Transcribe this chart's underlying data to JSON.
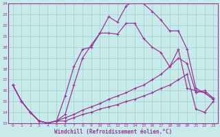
{
  "xlabel": "Windchill (Refroidissement éolien,°C)",
  "bg_color": "#c8eaea",
  "line_color": "#993399",
  "grid_color": "#9ecece",
  "xlim": [
    -0.5,
    23.5
  ],
  "ylim": [
    13,
    24
  ],
  "yticks": [
    13,
    14,
    15,
    16,
    17,
    18,
    19,
    20,
    21,
    22,
    23,
    24
  ],
  "xticks": [
    0,
    1,
    2,
    3,
    4,
    5,
    6,
    7,
    8,
    9,
    10,
    11,
    12,
    13,
    14,
    15,
    16,
    17,
    18,
    19,
    20,
    21,
    22,
    23
  ],
  "line1_x": [
    0,
    1,
    2,
    3,
    4,
    5,
    6,
    7,
    8,
    9,
    10,
    11,
    12,
    13,
    14,
    15,
    16,
    17,
    18,
    19,
    20,
    21,
    22,
    23
  ],
  "line1_y": [
    16.5,
    15.0,
    14.0,
    13.2,
    13.0,
    13.2,
    15.5,
    18.2,
    19.8,
    20.0,
    21.3,
    22.8,
    22.3,
    23.8,
    24.3,
    24.0,
    23.3,
    22.5,
    21.5,
    21.5,
    19.8,
    16.2,
    15.8,
    15.2
  ],
  "line2_x": [
    0,
    1,
    2,
    3,
    4,
    5,
    6,
    7,
    8,
    9,
    10,
    11,
    12,
    13,
    14,
    15,
    16,
    17,
    18,
    19,
    20,
    21,
    22,
    23
  ],
  "line2_y": [
    16.5,
    15.0,
    14.0,
    13.2,
    13.0,
    13.2,
    13.8,
    16.5,
    19.0,
    20.2,
    21.3,
    21.3,
    21.2,
    22.2,
    22.2,
    20.8,
    20.0,
    19.5,
    18.2,
    19.8,
    16.2,
    16.0,
    15.8,
    15.2
  ],
  "line3_x": [
    0,
    1,
    2,
    3,
    4,
    5,
    6,
    7,
    8,
    9,
    10,
    11,
    12,
    13,
    14,
    15,
    16,
    17,
    18,
    19,
    20,
    21,
    22,
    23
  ],
  "line3_y": [
    16.5,
    15.0,
    14.0,
    13.2,
    13.0,
    13.2,
    13.5,
    13.8,
    14.2,
    14.5,
    14.8,
    15.2,
    15.5,
    15.8,
    16.2,
    16.5,
    17.0,
    17.5,
    18.2,
    19.0,
    18.5,
    15.8,
    16.0,
    15.3
  ],
  "line4_x": [
    0,
    1,
    2,
    3,
    4,
    5,
    6,
    7,
    8,
    9,
    10,
    11,
    12,
    13,
    14,
    15,
    16,
    17,
    18,
    19,
    20,
    21,
    22,
    23
  ],
  "line4_y": [
    16.5,
    15.0,
    14.0,
    13.2,
    13.0,
    13.2,
    13.2,
    13.5,
    13.8,
    14.0,
    14.3,
    14.5,
    14.7,
    15.0,
    15.2,
    15.5,
    15.8,
    16.2,
    16.5,
    17.0,
    17.5,
    14.3,
    14.0,
    15.0
  ]
}
